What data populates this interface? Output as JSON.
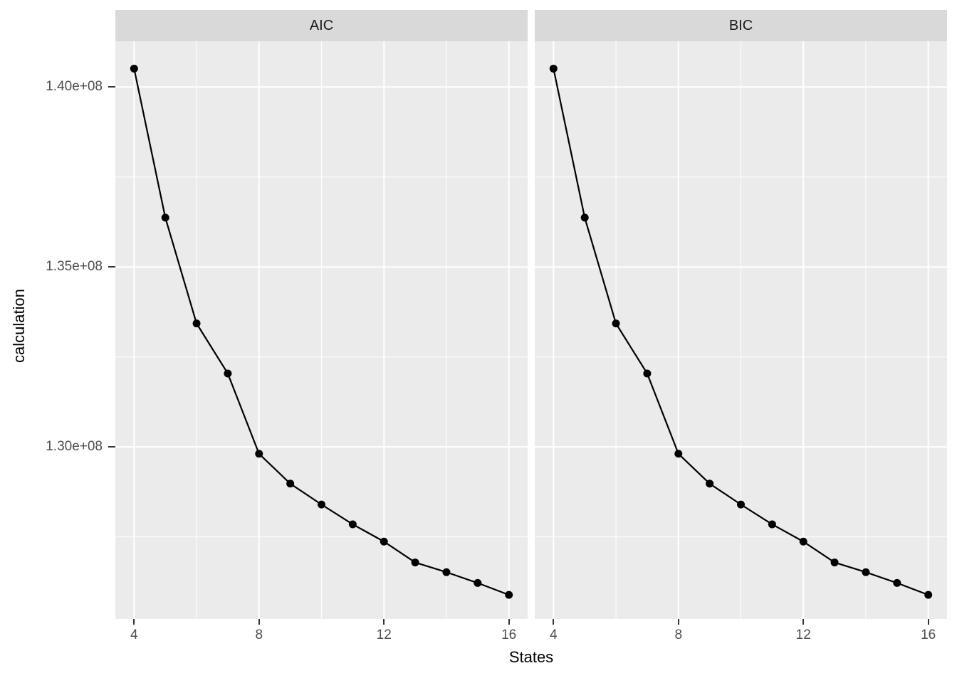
{
  "colors": {
    "panel_background": "#ebebeb",
    "strip_background": "#d9d9d9",
    "gridline": "#ffffff",
    "line": "#000000",
    "point": "#000000",
    "axis_text": "#4d4d4d",
    "axis_title": "#000000",
    "strip_text": "#1a1a1a",
    "tick_mark": "#333333"
  },
  "chart_data": {
    "type": "line",
    "title": "",
    "xlabel": "States",
    "ylabel": "calculation",
    "legend": "none",
    "grid": "on",
    "facets": [
      {
        "label": "AIC",
        "values": [
          140510000,
          136370000,
          133430000,
          132040000,
          129810000,
          128980000,
          128400000,
          127850000,
          127370000,
          126790000,
          126520000,
          126220000,
          125890000
        ]
      },
      {
        "label": "BIC",
        "values": [
          140510000,
          136370000,
          133430000,
          132040000,
          129810000,
          128980000,
          128400000,
          127850000,
          127370000,
          126790000,
          126520000,
          126220000,
          125890000
        ]
      }
    ],
    "x": [
      4,
      5,
      6,
      7,
      8,
      9,
      10,
      11,
      12,
      13,
      14,
      15,
      16
    ],
    "x_breaks": [
      4,
      8,
      12,
      16
    ],
    "x_tick_labels": [
      "4",
      "8",
      "12",
      "16"
    ],
    "x_minor_breaks": [
      6,
      10,
      14
    ],
    "y_breaks": [
      140000000,
      135000000,
      130000000
    ],
    "y_tick_labels": [
      "1.40e+08",
      "1.35e+08",
      "1.30e+08"
    ],
    "y_minor_breaks": [
      137500000,
      132500000,
      127500000
    ],
    "x_range": [
      3.4,
      16.6
    ],
    "y_range": [
      125220000,
      141270000
    ]
  }
}
